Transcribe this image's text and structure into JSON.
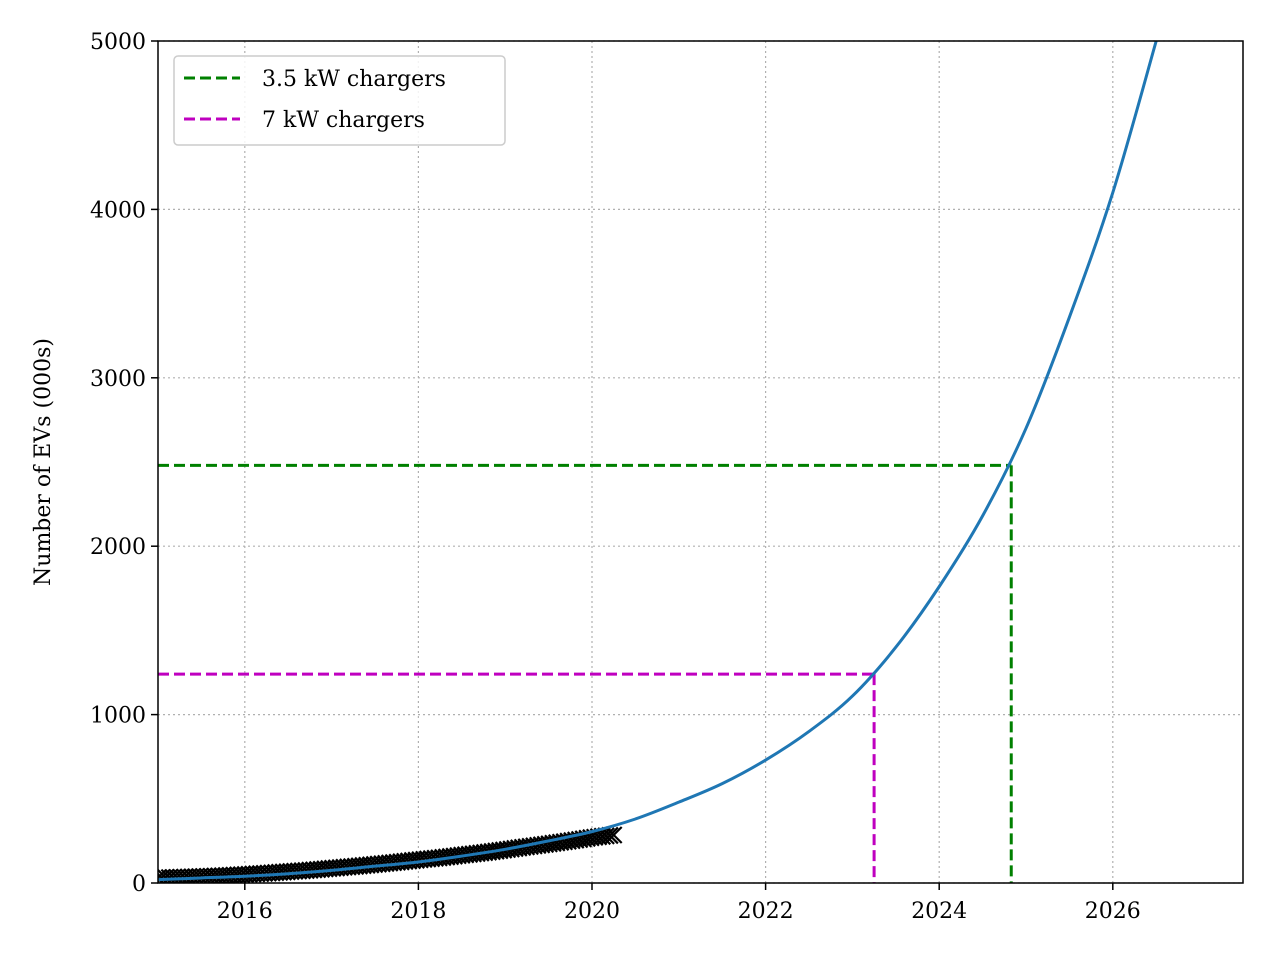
{
  "chart_data": {
    "type": "line",
    "title": "",
    "xlabel": "",
    "ylabel": "Number of EVs (000s)",
    "xlim": [
      2015.0,
      2027.5
    ],
    "ylim": [
      0,
      5000
    ],
    "x_ticks": [
      2016,
      2018,
      2020,
      2022,
      2024,
      2026
    ],
    "x_tick_labels": [
      "2016",
      "2018",
      "2020",
      "2022",
      "2024",
      "2026"
    ],
    "y_ticks": [
      0,
      1000,
      2000,
      3000,
      4000,
      5000
    ],
    "y_tick_labels": [
      "0",
      "1000",
      "2000",
      "3000",
      "4000",
      "5000"
    ],
    "grid": true,
    "legend_position": "top-left",
    "colors": {
      "fit": "#1f77b4",
      "observed": "#000000",
      "charger_3_5kw": "#008000",
      "charger_7kw": "#bf00bf",
      "grid": "#b0b0b0"
    },
    "observed": {
      "marker": "x",
      "x": [
        2015.0,
        2015.25,
        2015.5,
        2015.75,
        2016.0,
        2016.25,
        2016.5,
        2016.75,
        2017.0,
        2017.25,
        2017.5,
        2017.75,
        2018.0,
        2018.25,
        2018.5,
        2018.75,
        2019.0,
        2019.25,
        2019.5,
        2019.75,
        2020.0,
        2020.25
      ],
      "y": [
        30,
        34,
        38,
        43,
        50,
        58,
        67,
        76,
        87,
        98,
        110,
        123,
        137,
        150,
        165,
        180,
        197,
        215,
        232,
        250,
        270,
        285
      ]
    },
    "fit": {
      "x": [
        2015.0,
        2015.5,
        2016.0,
        2016.5,
        2017.0,
        2017.5,
        2018.0,
        2018.5,
        2019.0,
        2019.5,
        2020.0,
        2020.5,
        2021.0,
        2021.5,
        2022.0,
        2022.5,
        2023.0,
        2023.5,
        2024.0,
        2024.5,
        2025.0,
        2025.5,
        2026.0,
        2026.5
      ],
      "y": [
        20,
        30,
        40,
        55,
        75,
        100,
        125,
        160,
        200,
        250,
        305,
        380,
        480,
        590,
        730,
        900,
        1110,
        1400,
        1760,
        2180,
        2700,
        3360,
        4100,
        5000
      ]
    },
    "series": [
      {
        "name": "3.5 kW chargers",
        "style": "dashed",
        "level": 2480,
        "year": 2024.83
      },
      {
        "name": "7 kW chargers",
        "style": "dashed",
        "level": 1240,
        "year": 2023.25
      }
    ]
  }
}
